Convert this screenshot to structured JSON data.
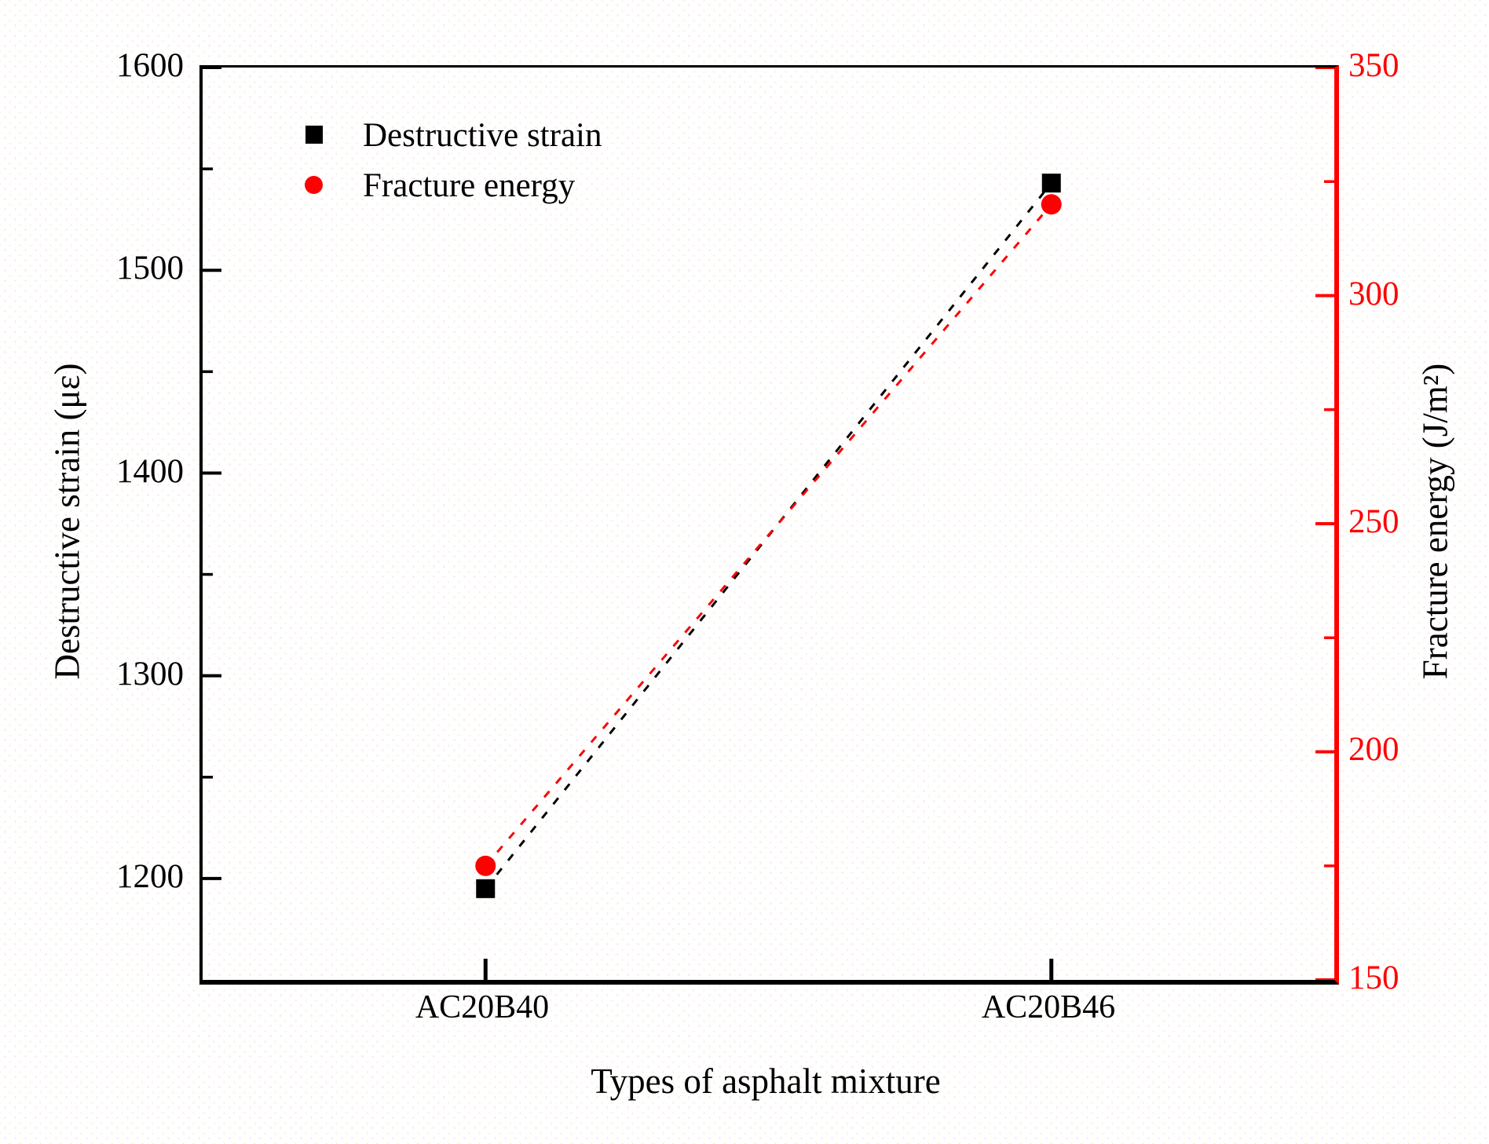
{
  "figure": {
    "background": "#ffffff",
    "frame_color": "#000000",
    "accent_red": "#ff0000"
  },
  "legend": {
    "position": "upper-left-inside",
    "items": [
      {
        "label": "Destructive strain",
        "marker": "square",
        "color": "#000000"
      },
      {
        "label": "Fracture energy",
        "marker": "circle",
        "color": "#ff0000"
      }
    ]
  },
  "chart_data": {
    "type": "line",
    "categories": [
      "AC20B40",
      "AC20B46"
    ],
    "category_positions": [
      0.25,
      0.75
    ],
    "series": [
      {
        "name": "Destructive strain",
        "axis": "left",
        "color": "#000000",
        "marker": "square",
        "line_style": "dashed",
        "values": [
          1195,
          1543
        ]
      },
      {
        "name": "Fracture energy",
        "axis": "right",
        "color": "#ff0000",
        "marker": "circle",
        "line_style": "dashed",
        "values": [
          175,
          320
        ]
      }
    ],
    "title": "",
    "xlabel": "Types of asphalt mixture",
    "y_left": {
      "label": "Destructive strain (με)",
      "min": 1150,
      "max": 1600,
      "ticks": [
        1600,
        1500,
        1400,
        1300,
        1200
      ],
      "minor_step": 50,
      "color": "#000000"
    },
    "y_right": {
      "label": "Fracture energy (J/m²)",
      "min": 150,
      "max": 350,
      "ticks": [
        350,
        300,
        250,
        200,
        150
      ],
      "minor_step": 25,
      "color": "#ff0000"
    },
    "grid": false,
    "legend_position": "upper-left-inside"
  }
}
